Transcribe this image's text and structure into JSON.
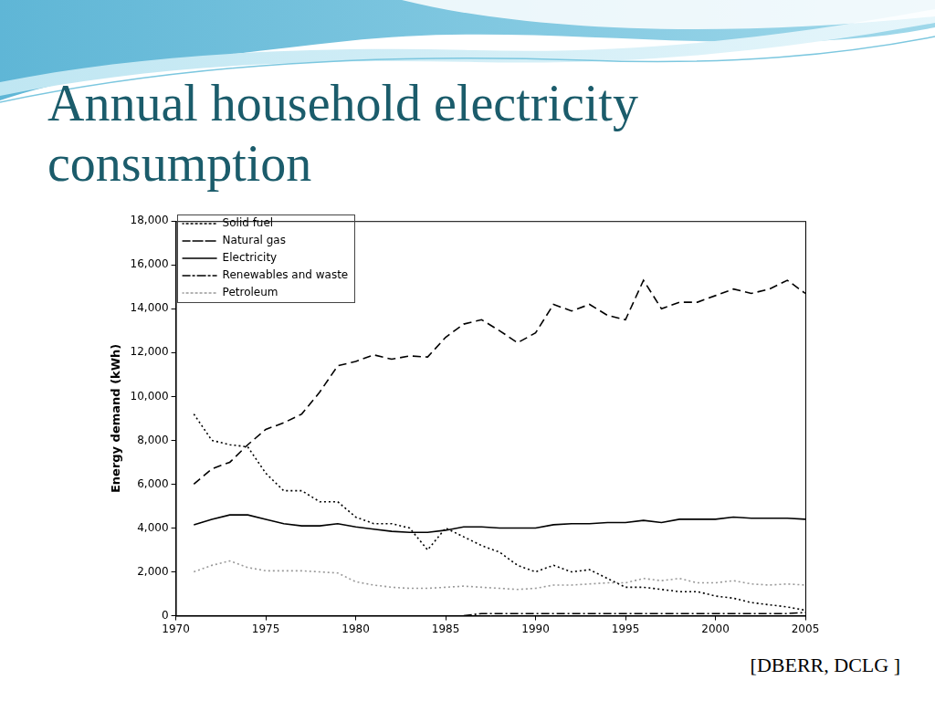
{
  "chart_data": {
    "type": "line",
    "title": "Annual household electricity consumption",
    "annotations": [
      "[DBERR, DCLG ]"
    ],
    "y_label": "Energy demand (kWh)",
    "x": [
      1971,
      1972,
      1973,
      1974,
      1975,
      1976,
      1977,
      1978,
      1979,
      1980,
      1981,
      1982,
      1983,
      1984,
      1985,
      1986,
      1987,
      1988,
      1989,
      1990,
      1991,
      1992,
      1993,
      1994,
      1995,
      1996,
      1997,
      1998,
      1999,
      2000,
      2001,
      2002,
      2003,
      2004,
      2005
    ],
    "series": [
      {
        "name": "Solid fuel",
        "color": "#000000",
        "line_style": "dotted",
        "values": [
          9200,
          8000,
          7800,
          7700,
          6500,
          5700,
          5700,
          5200,
          5200,
          4500,
          4200,
          4200,
          4000,
          3000,
          4000,
          3600,
          3200,
          2900,
          2300,
          2000,
          2300,
          2000,
          2100,
          1700,
          1300,
          1300,
          1200,
          1100,
          1100,
          900,
          800,
          600,
          500,
          400,
          250
        ]
      },
      {
        "name": "Natural gas",
        "color": "#000000",
        "line_style": "dashed",
        "values": [
          6000,
          6700,
          7000,
          7800,
          8500,
          8800,
          9200,
          10200,
          11400,
          11600,
          11900,
          11700,
          11850,
          11800,
          12700,
          13300,
          13500,
          13000,
          12450,
          12900,
          14200,
          13900,
          14200,
          13700,
          13500,
          15300,
          14000,
          14300,
          14300,
          14600,
          14900,
          14700,
          14900,
          15300,
          14700
        ]
      },
      {
        "name": "Electricity",
        "color": "#000000",
        "line_style": "solid",
        "values": [
          4150,
          4400,
          4600,
          4600,
          4400,
          4200,
          4100,
          4100,
          4200,
          4050,
          3950,
          3850,
          3800,
          3800,
          3900,
          4050,
          4050,
          4000,
          4000,
          4000,
          4150,
          4200,
          4200,
          4250,
          4250,
          4350,
          4250,
          4400,
          4400,
          4400,
          4500,
          4450,
          4450,
          4450,
          4400
        ]
      },
      {
        "name": "Renewables and waste",
        "color": "#000000",
        "line_style": "dashdot",
        "values": [
          null,
          null,
          null,
          null,
          null,
          null,
          null,
          null,
          null,
          null,
          null,
          null,
          null,
          null,
          null,
          0,
          100,
          100,
          100,
          100,
          100,
          100,
          100,
          100,
          100,
          100,
          100,
          100,
          100,
          100,
          100,
          100,
          100,
          100,
          150
        ]
      },
      {
        "name": "Petroleum",
        "color": "#999999",
        "line_style": "dotted",
        "values": [
          2000,
          2300,
          2500,
          2200,
          2050,
          2050,
          2050,
          2000,
          1950,
          1550,
          1400,
          1300,
          1250,
          1250,
          1300,
          1350,
          1300,
          1250,
          1200,
          1250,
          1400,
          1400,
          1450,
          1500,
          1500,
          1700,
          1600,
          1700,
          1500,
          1500,
          1600,
          1450,
          1400,
          1450,
          1400
        ]
      }
    ],
    "xlim": [
      1970,
      2005
    ],
    "xticks": [
      1970,
      1975,
      1980,
      1985,
      1990,
      1995,
      2000,
      2005
    ],
    "ylim": [
      0,
      18000
    ],
    "yticks": [
      0,
      {
        "value": 2000,
        "label": "2,000"
      },
      {
        "value": 4000,
        "label": "4,000"
      },
      {
        "value": 6000,
        "label": "6,000"
      },
      {
        "value": 8000,
        "label": "8,000"
      },
      {
        "value": 10000,
        "label": "10,000"
      },
      {
        "value": 12000,
        "label": "12,000"
      },
      {
        "value": 14000,
        "label": "14,000"
      },
      {
        "value": 16000,
        "label": "16,000"
      },
      {
        "value": 18000,
        "label": "18,000"
      }
    ],
    "grid": false,
    "legend": "upper left"
  }
}
